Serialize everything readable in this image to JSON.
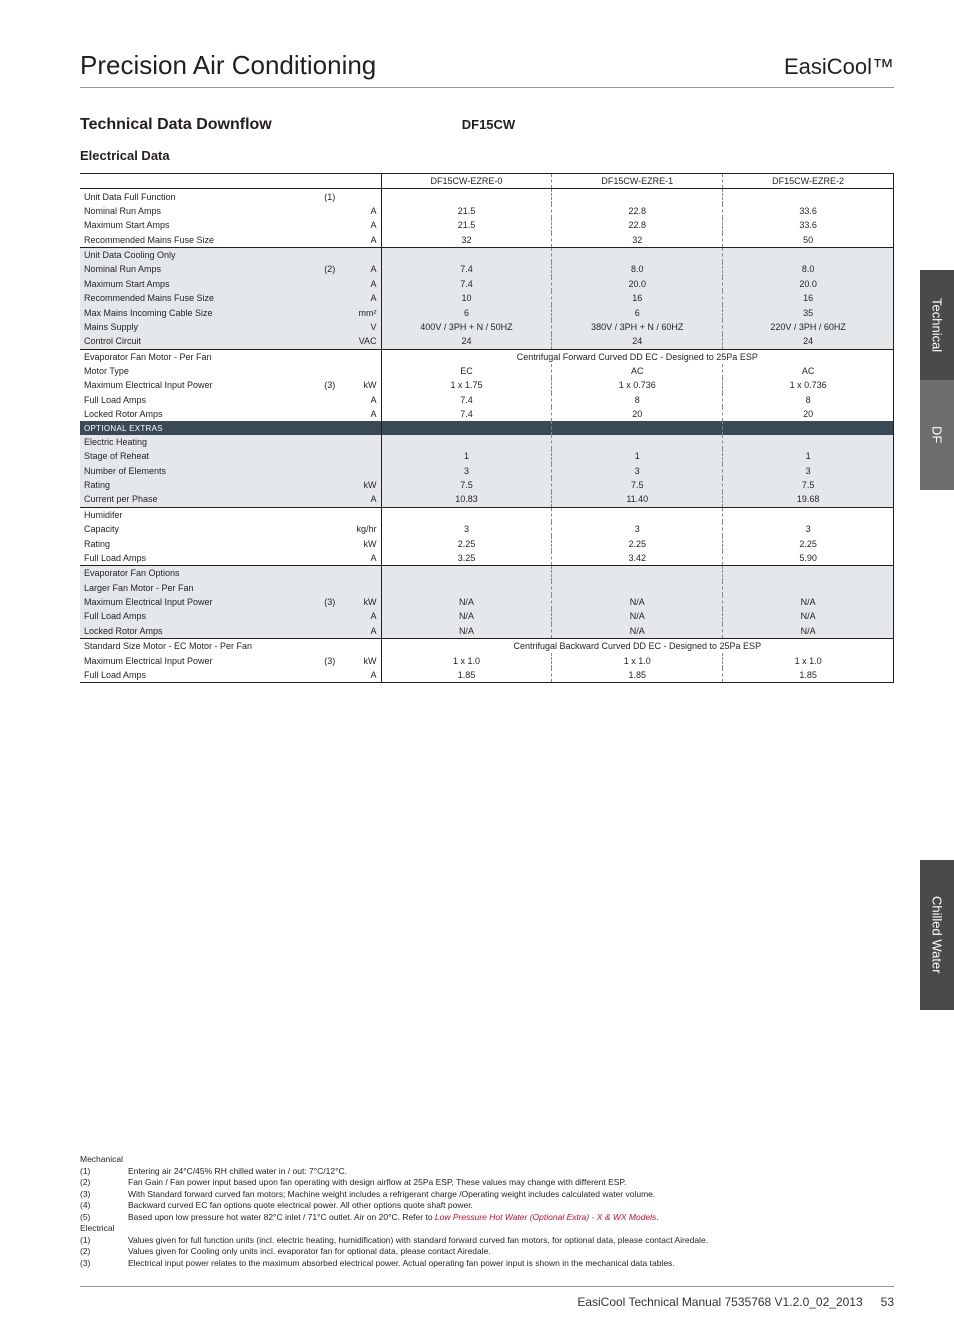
{
  "header": {
    "left": "Precision Air Conditioning",
    "right": "EasiCool™"
  },
  "titles": {
    "section": "Technical Data Downflow",
    "model": "DF15CW",
    "sub": "Electrical Data"
  },
  "tabs": {
    "t1": "Technical",
    "t2": "DF",
    "t3": "Chilled Water"
  },
  "columns": [
    "DF15CW-EZRE-0",
    "DF15CW-EZRE-1",
    "DF15CW-EZRE-2"
  ],
  "groups": [
    {
      "style": "plain",
      "rows": [
        {
          "label": "Unit Data Full Function",
          "note": "(1)",
          "unit": "",
          "v": [
            "",
            "",
            ""
          ]
        },
        {
          "label": "Nominal Run Amps",
          "note": "",
          "unit": "A",
          "v": [
            "21.5",
            "22.8",
            "33.6"
          ]
        },
        {
          "label": "Maximum Start Amps",
          "note": "",
          "unit": "A",
          "v": [
            "21.5",
            "22.8",
            "33.6"
          ]
        },
        {
          "label": "Recommended Mains Fuse Size",
          "note": "",
          "unit": "A",
          "v": [
            "32",
            "32",
            "50"
          ]
        }
      ]
    },
    {
      "style": "shaded",
      "rows": [
        {
          "label": "Unit Data Cooling Only",
          "note": "",
          "unit": "",
          "v": [
            "",
            "",
            ""
          ]
        },
        {
          "label": "Nominal Run Amps",
          "note": "(2)",
          "unit": "A",
          "v": [
            "7.4",
            "8.0",
            "8.0"
          ]
        },
        {
          "label": "Maximum Start Amps",
          "note": "",
          "unit": "A",
          "v": [
            "7.4",
            "20.0",
            "20.0"
          ]
        },
        {
          "label": "Recommended Mains Fuse Size",
          "note": "",
          "unit": "A",
          "v": [
            "10",
            "16",
            "16"
          ]
        },
        {
          "label": "Max Mains Incoming Cable Size",
          "note": "",
          "unit": "mm²",
          "v": [
            "6",
            "6",
            "35"
          ]
        },
        {
          "label": "Mains Supply",
          "note": "",
          "unit": "V",
          "v": [
            "400V / 3PH + N / 50HZ",
            "380V / 3PH + N / 60HZ",
            "220V / 3PH / 60HZ"
          ]
        },
        {
          "label": "Control Circuit",
          "note": "",
          "unit": "VAC",
          "v": [
            "24",
            "24",
            "24"
          ]
        }
      ]
    },
    {
      "style": "plain",
      "rows": [
        {
          "label": "Evaporator Fan Motor - Per Fan",
          "note": "",
          "unit": "",
          "span": "Centrifugal Forward Curved DD EC - Designed to 25Pa ESP"
        },
        {
          "label": "Motor Type",
          "note": "",
          "unit": "",
          "v": [
            "EC",
            "AC",
            "AC"
          ]
        },
        {
          "label": "Maximum Electrical Input Power",
          "note": "(3)",
          "unit": "kW",
          "v": [
            "1 x 1.75",
            "1 x 0.736",
            "1 x 0.736"
          ]
        },
        {
          "label": "Full Load Amps",
          "note": "",
          "unit": "A",
          "v": [
            "7.4",
            "8",
            "8"
          ]
        },
        {
          "label": "Locked Rotor Amps",
          "note": "",
          "unit": "A",
          "v": [
            "7.4",
            "20",
            "20"
          ]
        }
      ]
    },
    {
      "style": "dark",
      "rows": [
        {
          "label": "OPTIONAL EXTRAS",
          "note": "",
          "unit": "",
          "v": [
            "",
            "",
            ""
          ]
        }
      ]
    },
    {
      "style": "shaded",
      "rows": [
        {
          "label": "Electric Heating",
          "note": "",
          "unit": "",
          "v": [
            "",
            "",
            ""
          ]
        },
        {
          "label": "Stage of Reheat",
          "note": "",
          "unit": "",
          "v": [
            "1",
            "1",
            "1"
          ]
        },
        {
          "label": "Number of Elements",
          "note": "",
          "unit": "",
          "v": [
            "3",
            "3",
            "3"
          ]
        },
        {
          "label": "Rating",
          "note": "",
          "unit": "kW",
          "v": [
            "7.5",
            "7.5",
            "7.5"
          ]
        },
        {
          "label": "Current per Phase",
          "note": "",
          "unit": "A",
          "v": [
            "10.83",
            "11.40",
            "19.68"
          ]
        }
      ]
    },
    {
      "style": "plain",
      "rows": [
        {
          "label": "Humidifer",
          "note": "",
          "unit": "",
          "v": [
            "",
            "",
            ""
          ]
        },
        {
          "label": "Capacity",
          "note": "",
          "unit": "kg/hr",
          "v": [
            "3",
            "3",
            "3"
          ]
        },
        {
          "label": "Rating",
          "note": "",
          "unit": "kW",
          "v": [
            "2.25",
            "2.25",
            "2.25"
          ]
        },
        {
          "label": "Full Load Amps",
          "note": "",
          "unit": "A",
          "v": [
            "3.25",
            "3.42",
            "5.90"
          ]
        }
      ]
    },
    {
      "style": "shaded",
      "rows": [
        {
          "label": "Evaporator Fan Options",
          "note": "",
          "unit": "",
          "v": [
            "",
            "",
            ""
          ]
        },
        {
          "label": "Larger Fan Motor - Per Fan",
          "note": "",
          "unit": "",
          "v": [
            "",
            "",
            ""
          ]
        },
        {
          "label": "Maximum Electrical Input Power",
          "note": "(3)",
          "unit": "kW",
          "v": [
            "N/A",
            "N/A",
            "N/A"
          ]
        },
        {
          "label": "Full Load Amps",
          "note": "",
          "unit": "A",
          "v": [
            "N/A",
            "N/A",
            "N/A"
          ]
        },
        {
          "label": "Locked Rotor Amps",
          "note": "",
          "unit": "A",
          "v": [
            "N/A",
            "N/A",
            "N/A"
          ]
        }
      ]
    },
    {
      "style": "plain",
      "rows": [
        {
          "label": "Standard Size Motor - EC Motor - Per Fan",
          "note": "",
          "unit": "",
          "span": "Centrifugal Backward Curved DD EC - Designed to 25Pa ESP"
        },
        {
          "label": "Maximum Electrical Input Power",
          "note": "(3)",
          "unit": "kW",
          "v": [
            "1 x 1.0",
            "1 x 1.0",
            "1 x 1.0"
          ]
        },
        {
          "label": "Full Load Amps",
          "note": "",
          "unit": "A",
          "v": [
            "1.85",
            "1.85",
            "1.85"
          ]
        }
      ],
      "bottom": true
    }
  ],
  "footnotes": {
    "mech_label": "Mechanical",
    "mech": [
      {
        "n": "(1)",
        "t": "Entering air 24°C/45% RH chilled water in / out: 7°C/12°C."
      },
      {
        "n": "(2)",
        "t": "Fan Gain / Fan power input based upon fan operating with design airflow at 25Pa ESP, These values may change with different ESP."
      },
      {
        "n": "(3)",
        "t": "With Standard forward curved fan motors; Machine weight includes a refrigerant charge /Operating weight includes calculated water volume."
      },
      {
        "n": "(4)",
        "t": "Backward curved EC fan options quote electrical power. All other options quote shaft power."
      },
      {
        "n": "(5)",
        "t": "Based upon low pressure hot water 82°C inlet / 71°C outlet. Air on 20°C. Refer to ",
        "ital": "Low Pressure Hot Water (Optional Extra) - X & WX Models",
        "suffix": "."
      }
    ],
    "elec_label": "Electrical",
    "elec": [
      {
        "n": "(1)",
        "t": "Values given for full function units (incl. electric heating, humidification) with standard forward curved fan motors, for optional data, please contact Airedale."
      },
      {
        "n": "(2)",
        "t": "Values given for Cooling only units incl. evaporator fan for optional data, please contact Airedale."
      },
      {
        "n": "(3)",
        "t": "Electrical input power relates to the maximum absorbed electrical power. Actual operating fan power input is shown in the mechanical data tables."
      }
    ]
  },
  "footer": {
    "doc": "EasiCool Technical Manual 7535768 V1.2.0_02_2013",
    "page": "53"
  }
}
